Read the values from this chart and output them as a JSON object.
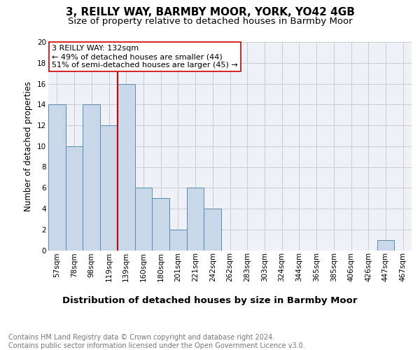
{
  "title1": "3, REILLY WAY, BARMBY MOOR, YORK, YO42 4GB",
  "title2": "Size of property relative to detached houses in Barmby Moor",
  "xlabel": "Distribution of detached houses by size in Barmby Moor",
  "ylabel": "Number of detached properties",
  "bin_labels": [
    "57sqm",
    "78sqm",
    "98sqm",
    "119sqm",
    "139sqm",
    "160sqm",
    "180sqm",
    "201sqm",
    "221sqm",
    "242sqm",
    "262sqm",
    "283sqm",
    "303sqm",
    "324sqm",
    "344sqm",
    "365sqm",
    "385sqm",
    "406sqm",
    "426sqm",
    "447sqm",
    "467sqm"
  ],
  "bin_values": [
    14,
    10,
    14,
    12,
    16,
    6,
    5,
    2,
    6,
    4,
    0,
    0,
    0,
    0,
    0,
    0,
    0,
    0,
    0,
    1,
    0
  ],
  "bar_color": "#c8d8e8",
  "bar_edgecolor": "#5a8ab0",
  "vline_color": "#cc0000",
  "vline_index": 3.5,
  "annotation_text": "3 REILLY WAY: 132sqm\n← 49% of detached houses are smaller (44)\n51% of semi-detached houses are larger (45) →",
  "annotation_box_color": "#ffffff",
  "annotation_box_edgecolor": "#cc0000",
  "ylim": [
    0,
    20
  ],
  "yticks": [
    0,
    2,
    4,
    6,
    8,
    10,
    12,
    14,
    16,
    18,
    20
  ],
  "title1_fontsize": 11,
  "title2_fontsize": 9.5,
  "xlabel_fontsize": 9.5,
  "ylabel_fontsize": 8.5,
  "tick_fontsize": 7.5,
  "annotation_fontsize": 8,
  "footer_fontsize": 7,
  "grid_color": "#cccccc",
  "background_color": "#eef2f8",
  "footer_text": "Contains HM Land Registry data © Crown copyright and database right 2024.\nContains public sector information licensed under the Open Government Licence v3.0."
}
